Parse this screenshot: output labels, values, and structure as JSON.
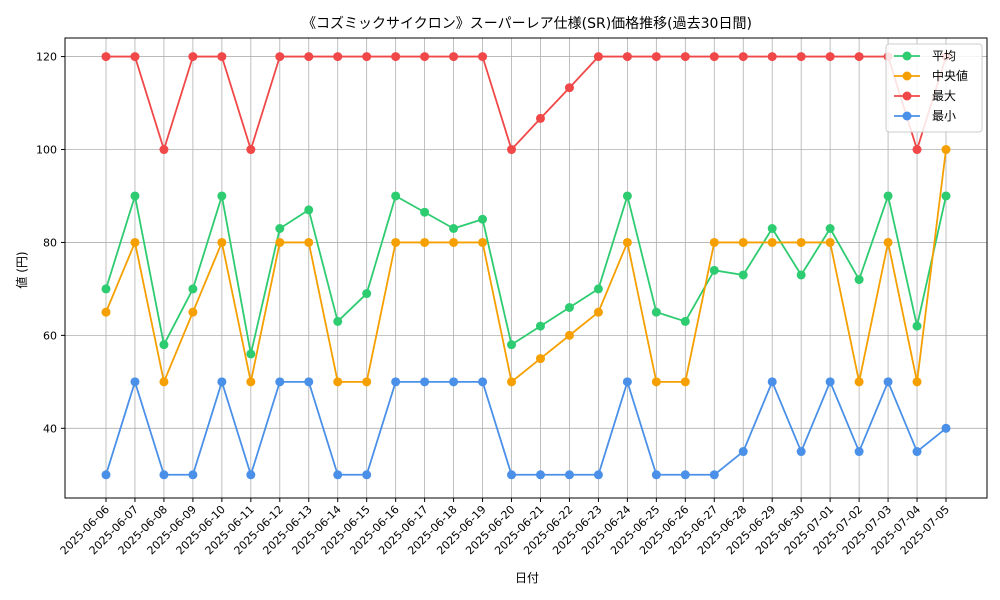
{
  "chart_data": {
    "type": "line",
    "title": "《コズミックサイクロン》スーパーレア仕様(SR)価格推移(過去30日間)",
    "xlabel": "日付",
    "ylabel": "値 (円)",
    "ylim": [
      25,
      124
    ],
    "yticks": [
      40,
      60,
      80,
      100,
      120
    ],
    "grid": true,
    "legend_position": "top-right",
    "categories": [
      "2025-06-06",
      "2025-06-07",
      "2025-06-08",
      "2025-06-09",
      "2025-06-10",
      "2025-06-11",
      "2025-06-12",
      "2025-06-13",
      "2025-06-14",
      "2025-06-15",
      "2025-06-16",
      "2025-06-17",
      "2025-06-18",
      "2025-06-19",
      "2025-06-20",
      "2025-06-21",
      "2025-06-22",
      "2025-06-23",
      "2025-06-24",
      "2025-06-25",
      "2025-06-26",
      "2025-06-27",
      "2025-06-28",
      "2025-06-29",
      "2025-06-30",
      "2025-07-01",
      "2025-07-02",
      "2025-07-03",
      "2025-07-04",
      "2025-07-05"
    ],
    "series": [
      {
        "name": "平均",
        "color": "#2ecc71",
        "values": [
          70,
          90,
          58,
          70,
          90,
          56,
          83,
          87,
          63,
          69,
          90,
          86.5,
          83,
          85,
          58,
          62,
          66,
          70,
          90,
          65,
          63,
          74,
          73,
          83,
          73,
          83,
          72,
          90,
          62,
          90
        ]
      },
      {
        "name": "中央値",
        "color": "#f5a000",
        "values": [
          65,
          80,
          50,
          65,
          80,
          50,
          80,
          80,
          50,
          50,
          80,
          80,
          80,
          80,
          50,
          55,
          60,
          65,
          80,
          50,
          50,
          80,
          80,
          80,
          80,
          80,
          50,
          80,
          50,
          100
        ]
      },
      {
        "name": "最大",
        "color": "#f04848",
        "values": [
          120,
          120,
          100,
          120,
          120,
          100,
          120,
          120,
          120,
          120,
          120,
          120,
          120,
          120,
          100,
          106.7,
          113.3,
          120,
          120,
          120,
          120,
          120,
          120,
          120,
          120,
          120,
          120,
          120,
          100,
          120
        ]
      },
      {
        "name": "最小",
        "color": "#4a90e8",
        "values": [
          30,
          50,
          30,
          30,
          50,
          30,
          50,
          50,
          30,
          30,
          50,
          50,
          50,
          50,
          30,
          30,
          30,
          30,
          50,
          30,
          30,
          30,
          35,
          50,
          35,
          50,
          35,
          50,
          35,
          40
        ]
      }
    ]
  }
}
